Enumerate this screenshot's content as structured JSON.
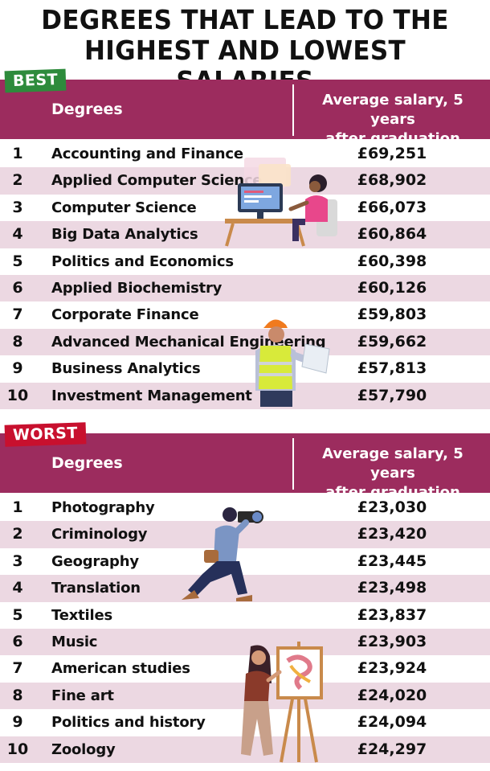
{
  "title_line1": "DEGREES THAT LEAD TO THE",
  "title_line2": "HIGHEST AND LOWEST SALARIES",
  "best": {
    "tag": "BEST",
    "header_degrees": "Degrees",
    "header_salary_line1": "Average salary, 5 years",
    "header_salary_line2": "after graduation",
    "rows": [
      {
        "rank": "1",
        "degree": "Accounting and Finance",
        "salary": "£69,251"
      },
      {
        "rank": "2",
        "degree": "Applied Computer Science",
        "salary": "£68,902"
      },
      {
        "rank": "3",
        "degree": "Computer Science",
        "salary": "£66,073"
      },
      {
        "rank": "4",
        "degree": "Big Data Analytics",
        "salary": "£60,864"
      },
      {
        "rank": "5",
        "degree": "Politics and Economics",
        "salary": "£60,398"
      },
      {
        "rank": "6",
        "degree": "Applied Biochemistry",
        "salary": "£60,126"
      },
      {
        "rank": "7",
        "degree": "Corporate Finance",
        "salary": "£59,803"
      },
      {
        "rank": "8",
        "degree": "Advanced Mechanical Engineering",
        "salary": "£59,662"
      },
      {
        "rank": "9",
        "degree": "Business Analytics",
        "salary": "£57,813"
      },
      {
        "rank": "10",
        "degree": "Investment Management",
        "salary": "£57,790"
      }
    ]
  },
  "worst": {
    "tag": "WORST",
    "header_degrees": "Degrees",
    "header_salary_line1": "Average salary, 5 years",
    "header_salary_line2": "after graduation",
    "rows": [
      {
        "rank": "1",
        "degree": "Photography",
        "salary": "£23,030"
      },
      {
        "rank": "2",
        "degree": "Criminology",
        "salary": "£23,420"
      },
      {
        "rank": "3",
        "degree": "Geography",
        "salary": "£23,445"
      },
      {
        "rank": "4",
        "degree": "Translation",
        "salary": "£23,498"
      },
      {
        "rank": "5",
        "degree": "Textiles",
        "salary": "£23,837"
      },
      {
        "rank": "6",
        "degree": "Music",
        "salary": "£23,903"
      },
      {
        "rank": "7",
        "degree": "American studies",
        "salary": "£23,924"
      },
      {
        "rank": "8",
        "degree": "Fine art",
        "salary": "£24,020"
      },
      {
        "rank": "9",
        "degree": "Politics and history",
        "salary": "£24,094"
      },
      {
        "rank": "10",
        "degree": "Zoology",
        "salary": "£24,297"
      }
    ]
  },
  "colors": {
    "header_bg": "#9c2c5e",
    "row_shade": "#ecd8e2",
    "best_tag": "#2e8b3c",
    "worst_tag": "#c8102e"
  },
  "chart_data": {
    "type": "table",
    "tables": [
      {
        "name": "BEST",
        "columns": [
          "Degrees",
          "Average salary, 5 years after graduation"
        ],
        "rows": [
          [
            "Accounting and Finance",
            69251
          ],
          [
            "Applied Computer Science",
            68902
          ],
          [
            "Computer Science",
            66073
          ],
          [
            "Big Data Analytics",
            60864
          ],
          [
            "Politics and Economics",
            60398
          ],
          [
            "Applied Biochemistry",
            60126
          ],
          [
            "Corporate Finance",
            59803
          ],
          [
            "Advanced Mechanical Engineering",
            59662
          ],
          [
            "Business Analytics",
            57813
          ],
          [
            "Investment Management",
            57790
          ]
        ]
      },
      {
        "name": "WORST",
        "columns": [
          "Degrees",
          "Average salary, 5 years after graduation"
        ],
        "rows": [
          [
            "Photography",
            23030
          ],
          [
            "Criminology",
            23420
          ],
          [
            "Geography",
            23445
          ],
          [
            "Translation",
            23498
          ],
          [
            "Textiles",
            23837
          ],
          [
            "Music",
            23903
          ],
          [
            "American studies",
            23924
          ],
          [
            "Fine art",
            24020
          ],
          [
            "Politics and history",
            24094
          ],
          [
            "Zoology",
            24297
          ]
        ]
      }
    ]
  }
}
